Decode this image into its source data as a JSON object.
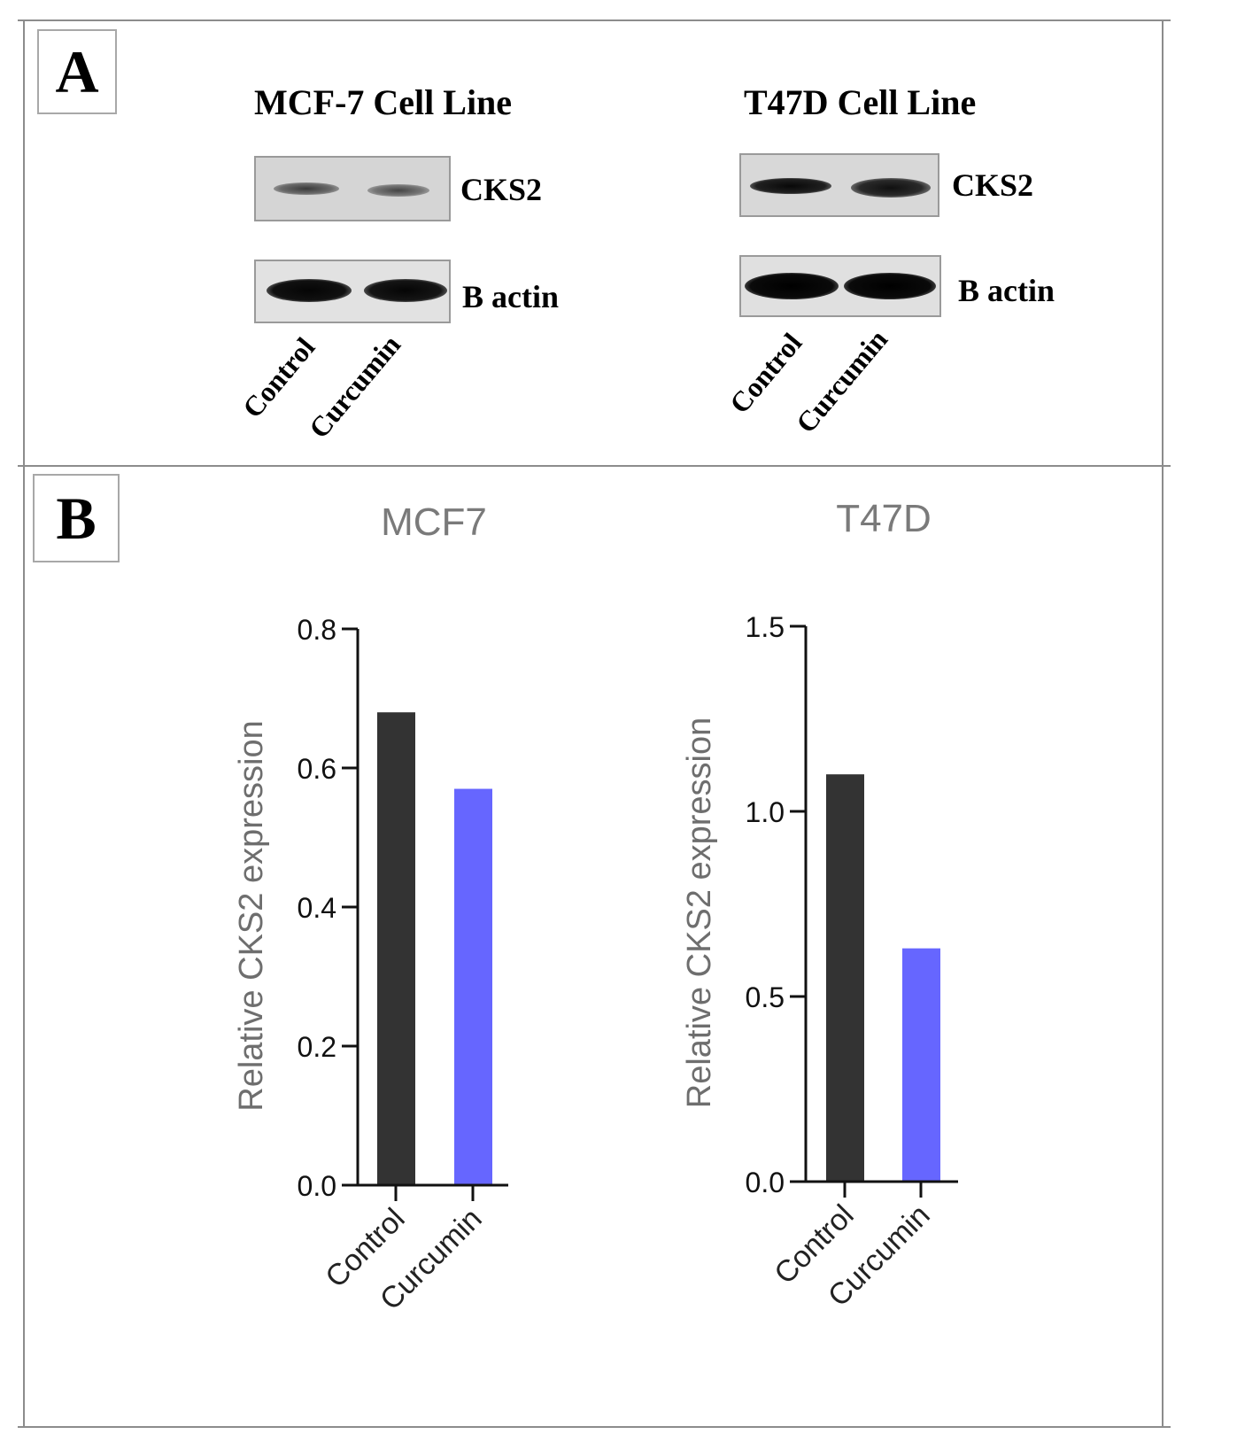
{
  "panel_a": {
    "letter": "A",
    "mcf7": {
      "title": "MCF-7 Cell Line",
      "band_label_1": "CKS2",
      "band_label_2": "B actin",
      "lanes": [
        "Control",
        "Curcumin"
      ]
    },
    "t47d": {
      "title": "T47D Cell Line",
      "band_label_1": "CKS2",
      "band_label_2": "B actin",
      "lanes": [
        "Control",
        "Curcumin"
      ]
    }
  },
  "panel_b": {
    "letter": "B"
  },
  "colors": {
    "control": "#333333",
    "curcumin": "#6666ff",
    "axis": "#111111",
    "title": "#7a7a7a",
    "ylabel": "#6e6e6e"
  },
  "chart_data": [
    {
      "type": "bar",
      "title": "MCF7",
      "categories": [
        "Control",
        "Curcumin"
      ],
      "values": [
        0.68,
        0.57
      ],
      "ylabel": "Relative CKS2 expression",
      "xlabel": "",
      "ylim": [
        0,
        0.8
      ],
      "yticks": [
        0.0,
        0.2,
        0.4,
        0.6,
        0.8
      ],
      "ytick_labels": [
        "0.0",
        "0.2",
        "0.4",
        "0.6",
        "0.8"
      ]
    },
    {
      "type": "bar",
      "title": "T47D",
      "categories": [
        "Control",
        "Curcumin"
      ],
      "values": [
        1.1,
        0.63
      ],
      "ylabel": "Relative CKS2 expression",
      "xlabel": "",
      "ylim": [
        0,
        1.5
      ],
      "yticks": [
        0.0,
        0.5,
        1.0,
        1.5
      ],
      "ytick_labels": [
        "0.0",
        "0.5",
        "1.0",
        "1.5"
      ]
    }
  ]
}
